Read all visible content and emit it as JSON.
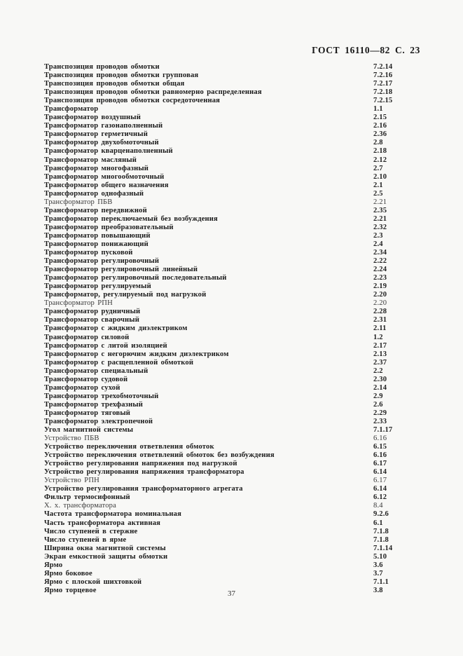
{
  "page": {
    "header": "ГОСТ  16110—82 С. 23",
    "page_number": "37"
  },
  "index": {
    "entries": [
      {
        "term": "Транспозиция проводов обмотки",
        "ref": "7.2.14",
        "style": "bold"
      },
      {
        "term": "Транспозиция проводов обмотки групповая",
        "ref": "7.2.16",
        "style": "bold"
      },
      {
        "term": "Транспозиция проводов обмотки общая",
        "ref": "7.2.17",
        "style": "bold"
      },
      {
        "term": "Транспозиция проводов обмотки равномерно распределенная",
        "ref": "7.2.18",
        "style": "bold"
      },
      {
        "term": "Транспозиция проводов обмотки сосредоточенная",
        "ref": "7.2.15",
        "style": "bold"
      },
      {
        "term": "Трансформатор",
        "ref": "1.1",
        "style": "bold"
      },
      {
        "term": "Трансформатор воздушный",
        "ref": "2.15",
        "style": "bold"
      },
      {
        "term": "Трансформатор газонаполненный",
        "ref": "2.16",
        "style": "bold"
      },
      {
        "term": "Трансформатор герметичный",
        "ref": "2.36",
        "style": "bold"
      },
      {
        "term": "Трансформатор двухобмоточный",
        "ref": "2.8",
        "style": "bold"
      },
      {
        "term": "Трансформатор кварценаполненный",
        "ref": "2.18",
        "style": "bold"
      },
      {
        "term": "Трансформатор масляный",
        "ref": "2.12",
        "style": "bold"
      },
      {
        "term": "Трансформатор многофазный",
        "ref": "2.7",
        "style": "bold"
      },
      {
        "term": "Трансформатор многообмоточный",
        "ref": "2.10",
        "style": "bold"
      },
      {
        "term": "Трансформатор общего назначения",
        "ref": "2.1",
        "style": "bold"
      },
      {
        "term": "Трансформатор однофазный",
        "ref": "2.5",
        "style": "bold"
      },
      {
        "term": "Трансформатор ПБВ",
        "ref": "2.21",
        "style": "regular"
      },
      {
        "term": "Трансформатор передвижной",
        "ref": "2.35",
        "style": "bold"
      },
      {
        "term": "Трансформатор переключаемый без возбуждения",
        "ref": "2.21",
        "style": "bold"
      },
      {
        "term": "Трансформатор преобразовательный",
        "ref": "2.32",
        "style": "bold"
      },
      {
        "term": "Трансформатор повышающий",
        "ref": "2.3",
        "style": "bold"
      },
      {
        "term": "Трансформатор понижающий",
        "ref": "2.4",
        "style": "bold"
      },
      {
        "term": "Трансформатор пусковой",
        "ref": "2.34",
        "style": "bold"
      },
      {
        "term": "Трансформатор регулировочный",
        "ref": "2.22",
        "style": "bold"
      },
      {
        "term": "Трансформатор регулировочный линейный",
        "ref": "2.24",
        "style": "bold"
      },
      {
        "term": "Трансформатор регулировочный последовательный",
        "ref": "2.23",
        "style": "bold"
      },
      {
        "term": "Трансформатор регулируемый",
        "ref": "2.19",
        "style": "bold"
      },
      {
        "term": "Трансформатор, регулируемый под нагрузкой",
        "ref": "2.20",
        "style": "bold"
      },
      {
        "term": "Трансформатор РПН",
        "ref": "2.20",
        "style": "regular"
      },
      {
        "term": "Трансформатор рудничный",
        "ref": "2.28",
        "style": "bold"
      },
      {
        "term": "Трансформатор сварочный",
        "ref": "2.31",
        "style": "bold"
      },
      {
        "term": "Трансформатор с жидким диэлектриком",
        "ref": "2.11",
        "style": "bold"
      },
      {
        "term": "Трансформатор силовой",
        "ref": "1.2",
        "style": "bold"
      },
      {
        "term": "Трансформатор с литой изоляцией",
        "ref": "2.17",
        "style": "bold"
      },
      {
        "term": "Трансформатор с негорючим жидким диэлектриком",
        "ref": "2.13",
        "style": "bold"
      },
      {
        "term": "Трансформатор с расщепленной обмоткой",
        "ref": "2.37",
        "style": "bold"
      },
      {
        "term": "Трансформатор специальный",
        "ref": "2.2",
        "style": "bold"
      },
      {
        "term": "Трансформатор судовой",
        "ref": "2.30",
        "style": "bold"
      },
      {
        "term": "Трансформатор сухой",
        "ref": "2.14",
        "style": "bold"
      },
      {
        "term": "Трансформатор трехобмоточный",
        "ref": "2.9",
        "style": "bold"
      },
      {
        "term": "Трансформатор трехфазный",
        "ref": "2.6",
        "style": "bold"
      },
      {
        "term": "Трансформатор тяговый",
        "ref": "2.29",
        "style": "bold"
      },
      {
        "term": "Трансформатор электропечной",
        "ref": "2.33",
        "style": "bold"
      },
      {
        "term": "Угол магнитной системы",
        "ref": "7.1.17",
        "style": "bold"
      },
      {
        "term": "Устройство ПБВ",
        "ref": "6.16",
        "style": "regular"
      },
      {
        "term": "Устройство переключения ответвления обмоток",
        "ref": "6.15",
        "style": "bold"
      },
      {
        "term": "Устройство переключения ответвлений обмоток без возбуждения",
        "ref": "6.16",
        "style": "bold"
      },
      {
        "term": "Устройство регулирования напряжения под нагрузкой",
        "ref": "6.17",
        "style": "bold"
      },
      {
        "term": "Устройство регулирования напряжения трансформатора",
        "ref": "6.14",
        "style": "bold"
      },
      {
        "term": "Устройство РПН",
        "ref": "6.17",
        "style": "regular"
      },
      {
        "term": "Устройство регулирования трансформаторного агрегата",
        "ref": "6.14",
        "style": "bold"
      },
      {
        "term": "Фильтр термосифонный",
        "ref": "6.12",
        "style": "bold"
      },
      {
        "term": "Х. х. трансформатора",
        "ref": "8.4",
        "style": "regular"
      },
      {
        "term": "Частота трансформатора номинальная",
        "ref": "9.2.6",
        "style": "bold"
      },
      {
        "term": "Часть трансформатора активная",
        "ref": "6.1",
        "style": "bold"
      },
      {
        "term": "Число ступеней в стержне",
        "ref": "7.1.8",
        "style": "bold"
      },
      {
        "term": "Число ступеней в ярме",
        "ref": "7.1.8",
        "style": "bold"
      },
      {
        "term": "Ширина окна магнитной системы",
        "ref": "7.1.14",
        "style": "bold"
      },
      {
        "term": "Экран емкостной защиты обмотки",
        "ref": "5.10",
        "style": "bold"
      },
      {
        "term": "Ярмо",
        "ref": "3.6",
        "style": "bold"
      },
      {
        "term": "Ярмо боковое",
        "ref": "3.7",
        "style": "bold"
      },
      {
        "term": "Ярмо с плоской шихтовкой",
        "ref": "7.1.1",
        "style": "bold"
      },
      {
        "term": "Ярмо торцевое",
        "ref": "3.8",
        "style": "bold"
      }
    ]
  }
}
